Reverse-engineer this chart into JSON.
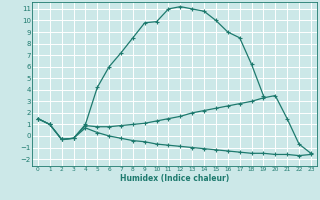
{
  "xlabel": "Humidex (Indice chaleur)",
  "bg_color": "#cce8e8",
  "grid_color": "#ffffff",
  "line_color": "#1e7a6e",
  "xlim": [
    -0.5,
    23.5
  ],
  "ylim": [
    -2.6,
    11.6
  ],
  "xticks": [
    0,
    1,
    2,
    3,
    4,
    5,
    6,
    7,
    8,
    9,
    10,
    11,
    12,
    13,
    14,
    15,
    16,
    17,
    18,
    19,
    20,
    21,
    22,
    23
  ],
  "yticks": [
    -2,
    -1,
    0,
    1,
    2,
    3,
    4,
    5,
    6,
    7,
    8,
    9,
    10,
    11
  ],
  "series": [
    {
      "x": [
        0,
        1,
        2,
        3,
        4,
        5,
        6,
        7,
        8,
        9,
        10,
        11,
        12,
        13,
        14,
        15,
        16,
        17,
        18,
        19
      ],
      "y": [
        1.5,
        1.0,
        -0.3,
        -0.2,
        1.0,
        4.2,
        6.0,
        7.2,
        8.5,
        9.8,
        9.9,
        11.0,
        11.2,
        11.0,
        10.8,
        10.0,
        9.0,
        8.5,
        6.2,
        3.5
      ]
    },
    {
      "x": [
        0,
        1,
        2,
        3,
        4,
        5,
        6,
        7,
        8,
        9,
        10,
        11,
        12,
        13,
        14,
        15,
        16,
        17,
        18,
        19,
        20,
        21,
        22,
        23
      ],
      "y": [
        1.5,
        1.0,
        -0.3,
        -0.2,
        0.9,
        0.8,
        0.8,
        0.9,
        1.0,
        1.1,
        1.3,
        1.5,
        1.7,
        2.0,
        2.2,
        2.4,
        2.6,
        2.8,
        3.0,
        3.3,
        3.5,
        1.5,
        -0.7,
        -1.5
      ]
    },
    {
      "x": [
        0,
        1,
        2,
        3,
        4,
        5,
        6,
        7,
        8,
        9,
        10,
        11,
        12,
        13,
        14,
        15,
        16,
        17,
        18,
        19,
        20,
        21,
        22,
        23
      ],
      "y": [
        1.5,
        1.0,
        -0.3,
        -0.2,
        0.7,
        0.3,
        0.0,
        -0.2,
        -0.4,
        -0.5,
        -0.7,
        -0.8,
        -0.9,
        -1.0,
        -1.1,
        -1.2,
        -1.3,
        -1.4,
        -1.5,
        -1.5,
        -1.6,
        -1.6,
        -1.7,
        -1.6
      ]
    }
  ]
}
